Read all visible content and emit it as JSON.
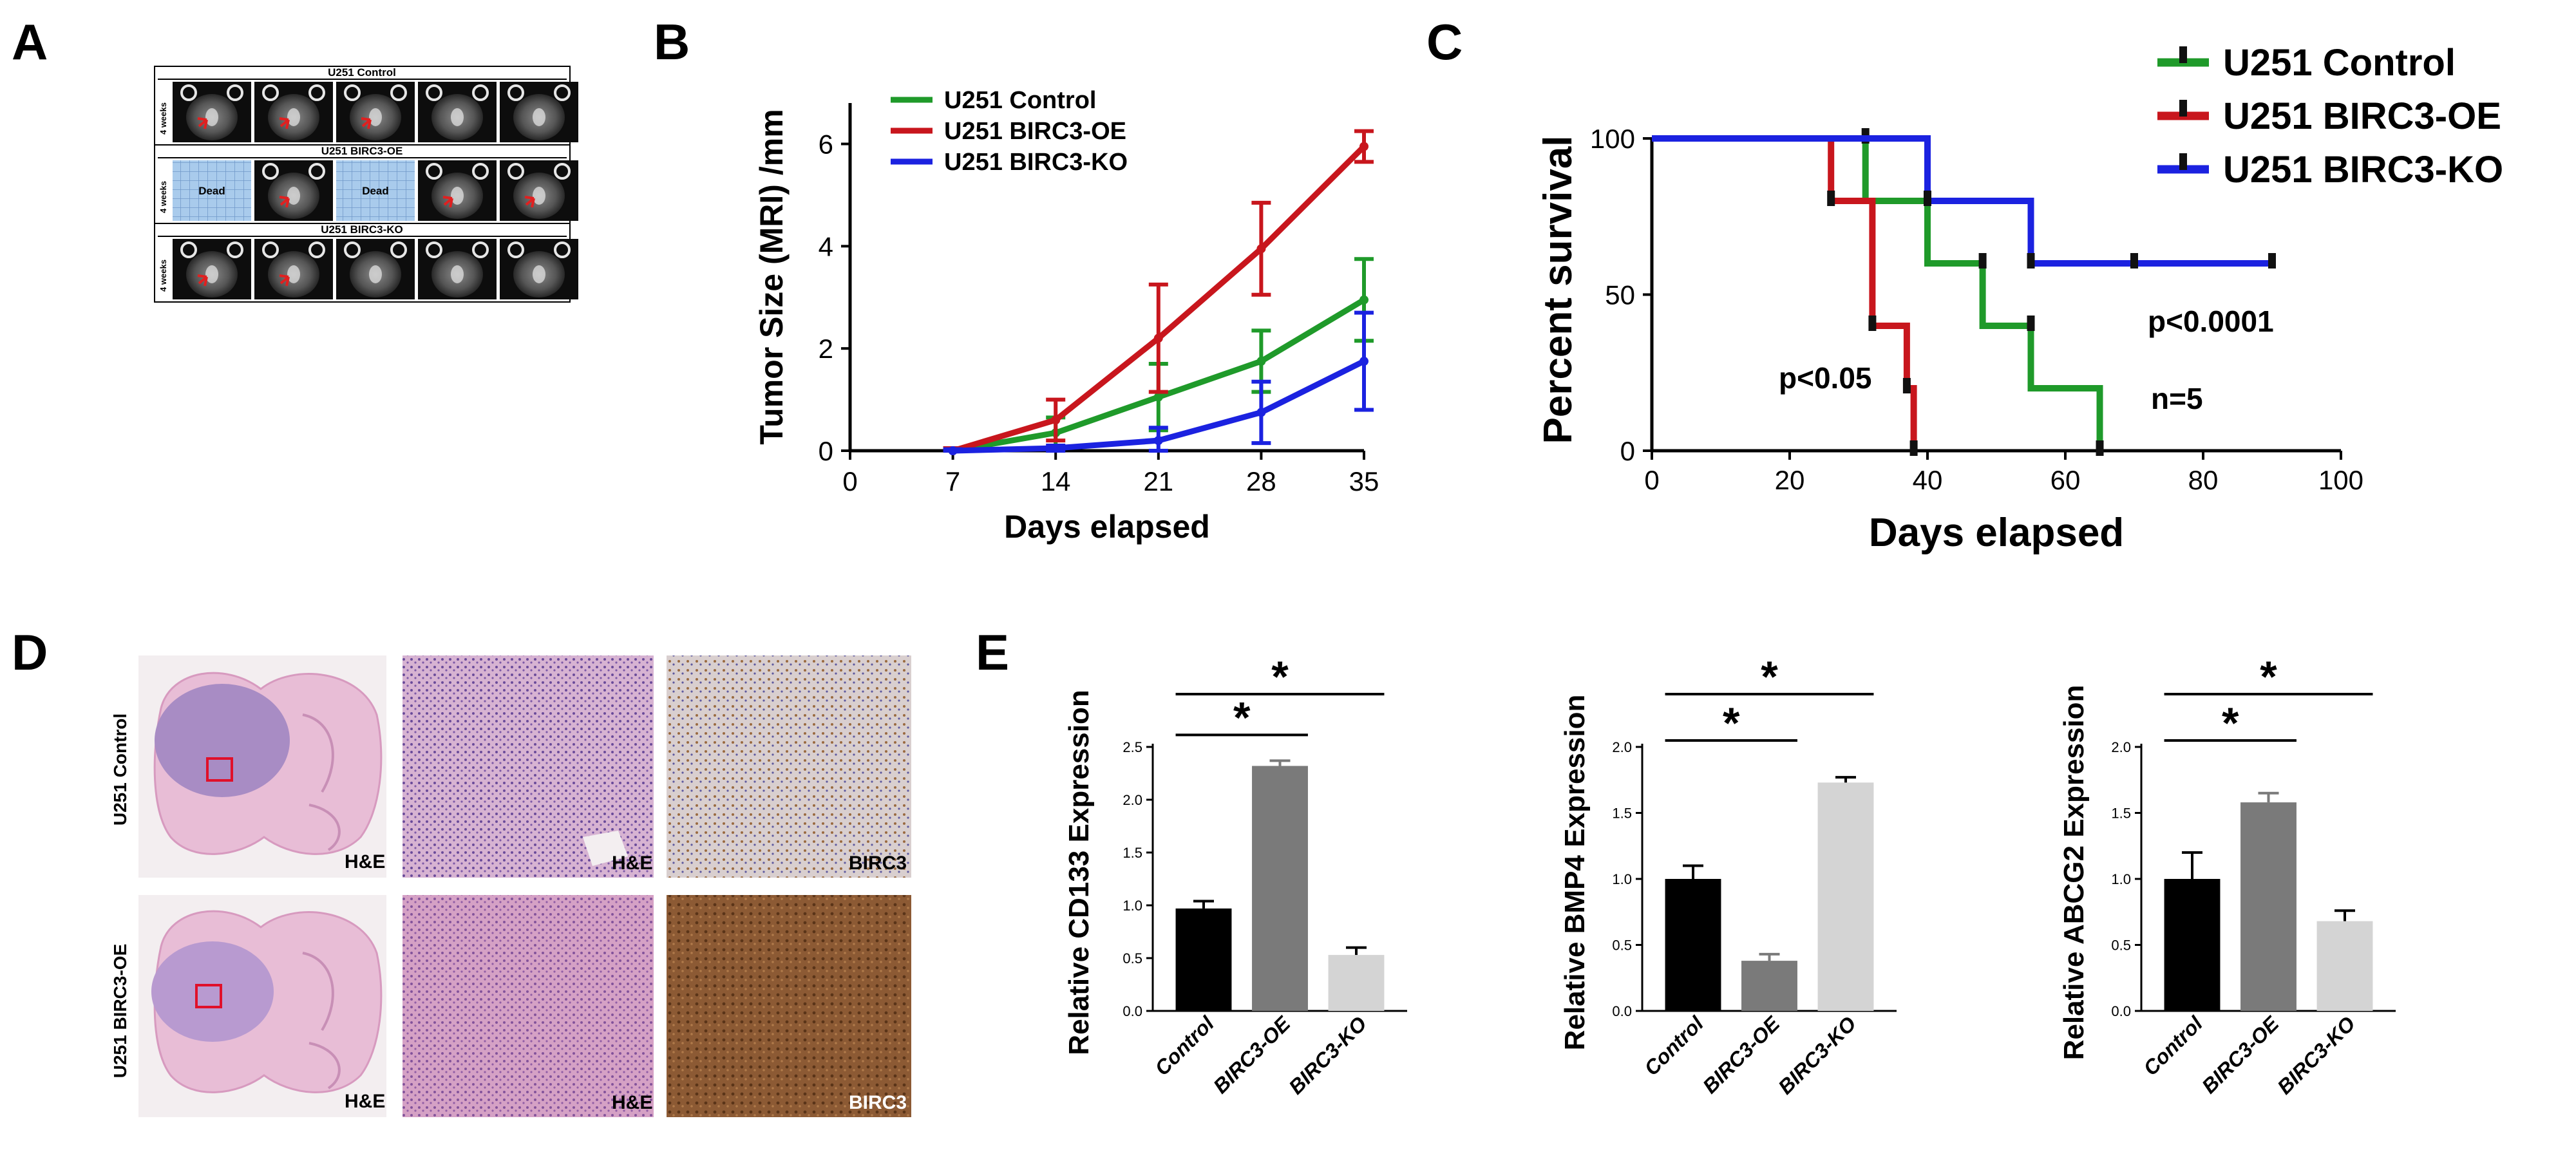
{
  "panels": {
    "A": "A",
    "B": "B",
    "C": "C",
    "D": "D",
    "E": "E"
  },
  "colors": {
    "control": "#1f9a2a",
    "oe": "#c8161d",
    "ko": "#1b22e0",
    "bar_control": "#000000",
    "bar_oe": "#7a7a7a",
    "bar_ko": "#d4d4d4",
    "mri_arrow": "#e02020",
    "dead_bg": "#a9cbec",
    "he_pink": "#d3a7c6",
    "birc3_brown": "#8a5a35"
  },
  "panel_a": {
    "rows": [
      {
        "title": "U251 Control",
        "side": "4 weeks",
        "tiles": [
          "mri",
          "mri",
          "mri",
          "mri",
          "mri"
        ]
      },
      {
        "title": "U251 BIRC3-OE",
        "side": "4 weeks",
        "tiles": [
          "dead",
          "mri",
          "dead",
          "mri",
          "mri"
        ]
      },
      {
        "title": "U251 BIRC3-KO",
        "side": "4 weeks",
        "tiles": [
          "mri",
          "mri",
          "mri",
          "mri",
          "mri"
        ]
      }
    ],
    "dead_label": "Dead"
  },
  "panel_d": {
    "rows": [
      {
        "label": "U251 Control",
        "slice_label": "H&E",
        "zoom1": "H&E",
        "zoom2": "BIRC3"
      },
      {
        "label": "U251 BIRC3-OE",
        "slice_label": "H&E",
        "zoom1": "H&E",
        "zoom2": "BIRC3"
      }
    ]
  },
  "chart_data": [
    {
      "id": "B",
      "type": "line",
      "title": "",
      "xlabel": "Days elapsed",
      "ylabel": "Tumor Size (MRI) /mm",
      "x": [
        7,
        14,
        21,
        28,
        35
      ],
      "xlim": [
        0,
        35
      ],
      "xticks": [
        0,
        7,
        14,
        21,
        28,
        35
      ],
      "ylim": [
        0,
        6.8
      ],
      "yticks": [
        0,
        2,
        4,
        6
      ],
      "legend": "top-left",
      "series": [
        {
          "name": "U251 Control",
          "color": "#1f9a2a",
          "values": [
            0,
            0.35,
            1.05,
            1.75,
            2.95
          ],
          "errors": [
            0.05,
            0.3,
            0.65,
            0.6,
            0.8
          ]
        },
        {
          "name": "U251 BIRC3-OE",
          "color": "#c8161d",
          "values": [
            0,
            0.6,
            2.2,
            3.95,
            5.95
          ],
          "errors": [
            0.05,
            0.4,
            1.05,
            0.9,
            0.3
          ]
        },
        {
          "name": "U251 BIRC3-KO",
          "color": "#1b22e0",
          "values": [
            0,
            0.05,
            0.2,
            0.75,
            1.75
          ],
          "errors": [
            0.03,
            0.05,
            0.25,
            0.6,
            0.95
          ]
        }
      ]
    },
    {
      "id": "C",
      "type": "line",
      "subtype": "survival",
      "xlabel": "Days elapsed",
      "ylabel": "Percent survival",
      "xlim": [
        0,
        100
      ],
      "xticks": [
        0,
        20,
        40,
        60,
        80,
        100
      ],
      "ylim": [
        0,
        100
      ],
      "yticks": [
        0,
        50,
        100
      ],
      "legend": "top-right",
      "series": [
        {
          "name": "U251 Control",
          "color": "#1f9a2a",
          "steps": [
            [
              0,
              100
            ],
            [
              31,
              100
            ],
            [
              31,
              80
            ],
            [
              40,
              80
            ],
            [
              40,
              60
            ],
            [
              48,
              60
            ],
            [
              48,
              40
            ],
            [
              55,
              40
            ],
            [
              55,
              20
            ],
            [
              65,
              20
            ],
            [
              65,
              0
            ]
          ],
          "censor": [
            [
              31,
              100
            ],
            [
              40,
              80
            ],
            [
              48,
              60
            ],
            [
              55,
              40
            ],
            [
              65,
              0
            ]
          ]
        },
        {
          "name": "U251 BIRC3-OE",
          "color": "#c8161d",
          "steps": [
            [
              0,
              100
            ],
            [
              26,
              100
            ],
            [
              26,
              80
            ],
            [
              32,
              80
            ],
            [
              32,
              40
            ],
            [
              37,
              40
            ],
            [
              37,
              20
            ],
            [
              38,
              20
            ],
            [
              38,
              0
            ]
          ],
          "censor": [
            [
              26,
              80
            ],
            [
              32,
              40
            ],
            [
              37,
              20
            ],
            [
              38,
              0
            ]
          ]
        },
        {
          "name": "U251 BIRC3-KO",
          "color": "#1b22e0",
          "steps": [
            [
              0,
              100
            ],
            [
              40,
              100
            ],
            [
              40,
              80
            ],
            [
              55,
              80
            ],
            [
              55,
              60
            ],
            [
              90,
              60
            ]
          ],
          "censor": [
            [
              40,
              80
            ],
            [
              55,
              60
            ],
            [
              70,
              60
            ],
            [
              90,
              60
            ]
          ]
        }
      ],
      "annotations": {
        "p1": "p<0.05",
        "p2": "p<0.0001",
        "n": "n=5"
      }
    },
    {
      "id": "E1",
      "type": "bar",
      "ylabel": "Relative CD133 Expression",
      "categories": [
        "Control",
        "BIRC3-OE",
        "BIRC3-KO"
      ],
      "values": [
        0.97,
        2.32,
        0.53
      ],
      "errors": [
        0.07,
        0.05,
        0.07
      ],
      "ylim": [
        0,
        2.5
      ],
      "yticks": [
        "0.0",
        "0.5",
        "1.0",
        "1.5",
        "2.0",
        "2.5"
      ],
      "significance": [
        {
          "from": 0,
          "to": 1,
          "label": "*"
        },
        {
          "from": 0,
          "to": 2,
          "label": "*"
        }
      ]
    },
    {
      "id": "E2",
      "type": "bar",
      "ylabel": "Relative BMP4 Expression",
      "categories": [
        "Control",
        "BIRC3-OE",
        "BIRC3-KO"
      ],
      "values": [
        1.0,
        0.38,
        1.73
      ],
      "errors": [
        0.1,
        0.05,
        0.04
      ],
      "ylim": [
        0,
        2.0
      ],
      "yticks": [
        "0.0",
        "0.5",
        "1.0",
        "1.5",
        "2.0"
      ],
      "significance": [
        {
          "from": 0,
          "to": 1,
          "label": "*"
        },
        {
          "from": 0,
          "to": 2,
          "label": "*"
        }
      ]
    },
    {
      "id": "E3",
      "type": "bar",
      "ylabel": "Relative ABCG2 Expression",
      "categories": [
        "Control",
        "BIRC3-OE",
        "BIRC3-KO"
      ],
      "values": [
        1.0,
        1.58,
        0.68
      ],
      "errors": [
        0.2,
        0.07,
        0.08
      ],
      "ylim": [
        0,
        2.0
      ],
      "yticks": [
        "0.0",
        "0.5",
        "1.0",
        "1.5",
        "2.0"
      ],
      "significance": [
        {
          "from": 0,
          "to": 1,
          "label": "*"
        },
        {
          "from": 0,
          "to": 2,
          "label": "*"
        }
      ]
    }
  ]
}
